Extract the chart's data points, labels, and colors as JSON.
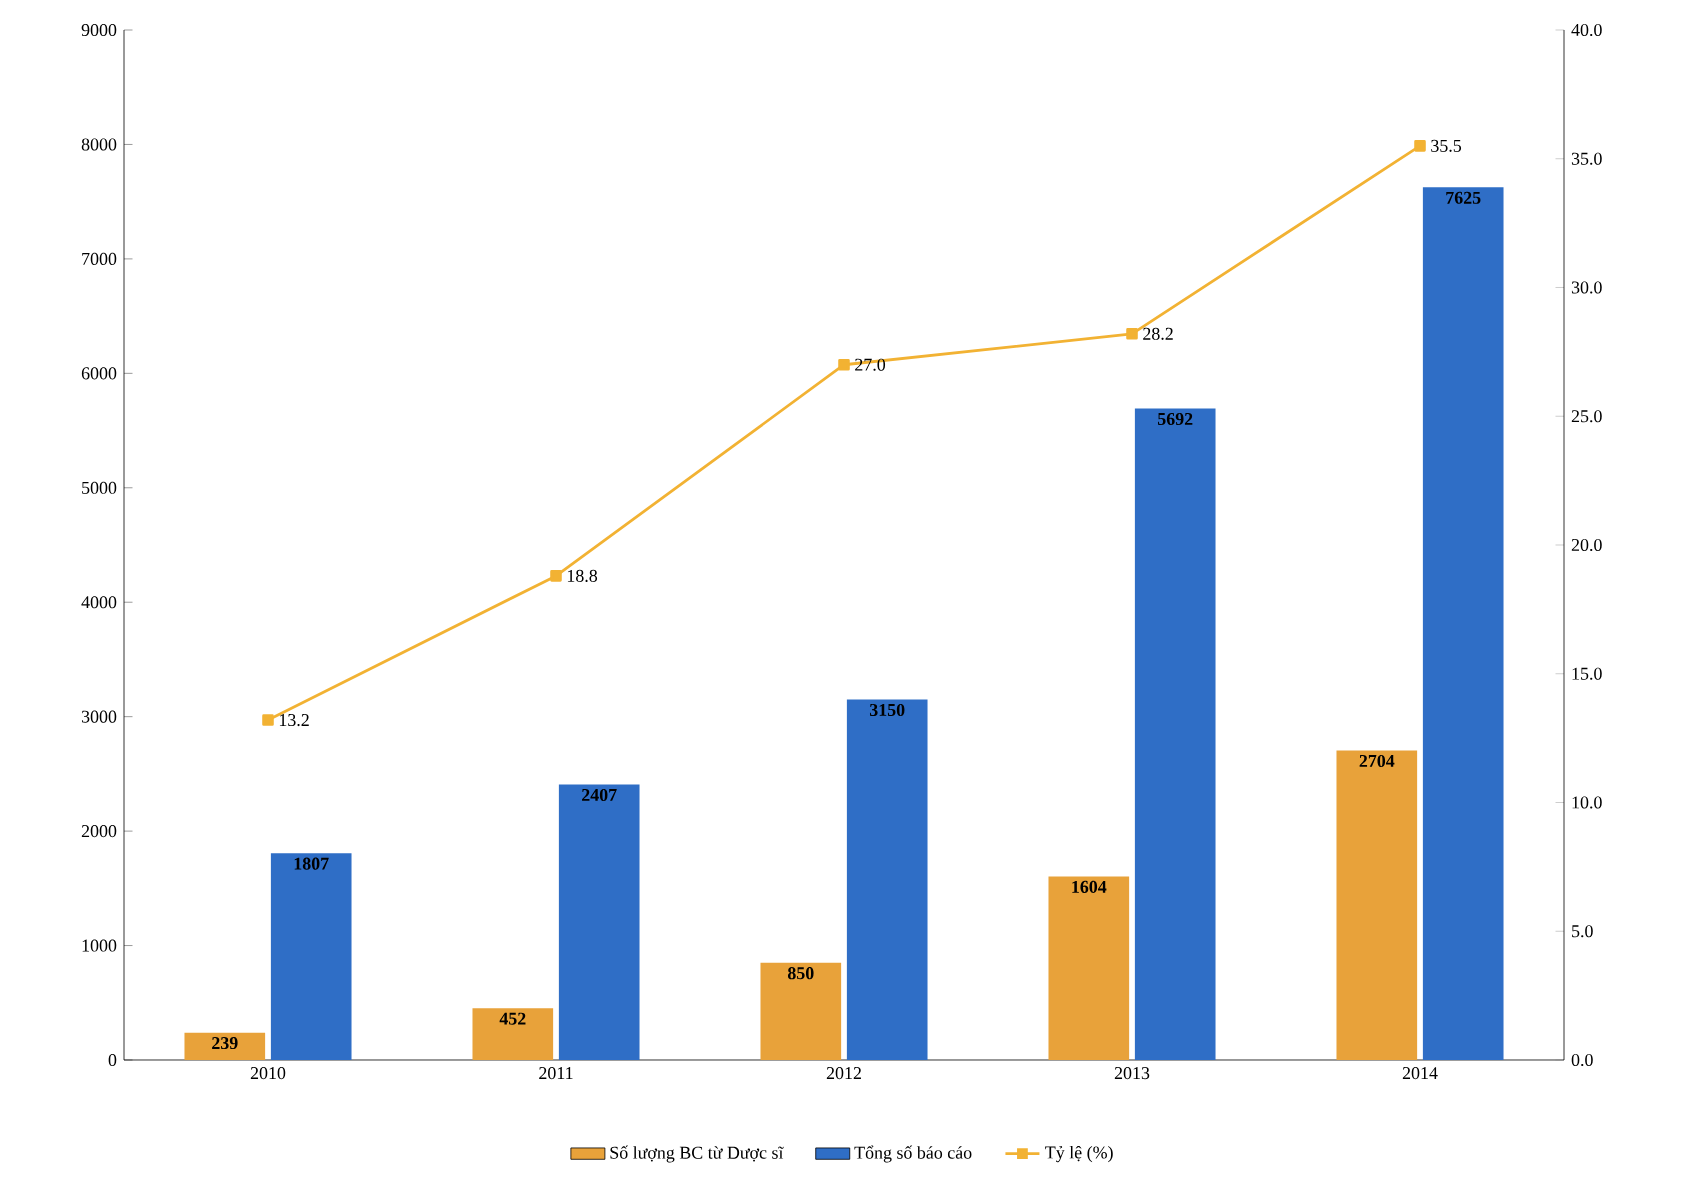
{
  "chart_data": {
    "type": "bar",
    "categories": [
      "2010",
      "2011",
      "2012",
      "2013",
      "2014"
    ],
    "series": [
      {
        "name": "Số lượng BC từ Dược sĩ",
        "color": "#e8a23a",
        "values": [
          239,
          452,
          850,
          1604,
          2704
        ],
        "value_labels": [
          "239",
          "452",
          "850",
          "1604",
          "2704"
        ]
      },
      {
        "name": "Tổng số báo cáo",
        "color": "#2f6ec6",
        "values": [
          1807,
          2407,
          3150,
          5692,
          7625
        ],
        "value_labels": [
          "1807",
          "2407",
          "3150",
          "5692",
          "7625"
        ]
      },
      {
        "name": "Tỷ lệ (%)",
        "type": "line",
        "axis": "y2",
        "color": "#f2b233",
        "marker": "square",
        "values": [
          13.2,
          18.8,
          27.0,
          28.2,
          35.5
        ],
        "value_labels": [
          "13.2",
          "18.8",
          "27.0",
          "28.2",
          "35.5"
        ]
      }
    ],
    "ylim": [
      0,
      9000
    ],
    "yticks": [
      0,
      1000,
      2000,
      3000,
      4000,
      5000,
      6000,
      7000,
      8000,
      9000
    ],
    "y2lim": [
      0,
      40
    ],
    "y2ticks": [
      {
        "value": 0,
        "label": "0.0"
      },
      {
        "value": 5,
        "label": "5.0"
      },
      {
        "value": 10,
        "label": "10.0"
      },
      {
        "value": 15,
        "label": "15.0"
      },
      {
        "value": 20,
        "label": "20.0"
      },
      {
        "value": 25,
        "label": "25.0"
      },
      {
        "value": 30,
        "label": "30.0"
      },
      {
        "value": 35,
        "label": "35.0"
      },
      {
        "value": 40,
        "label": "40.0"
      }
    ],
    "legend": "bottom"
  }
}
